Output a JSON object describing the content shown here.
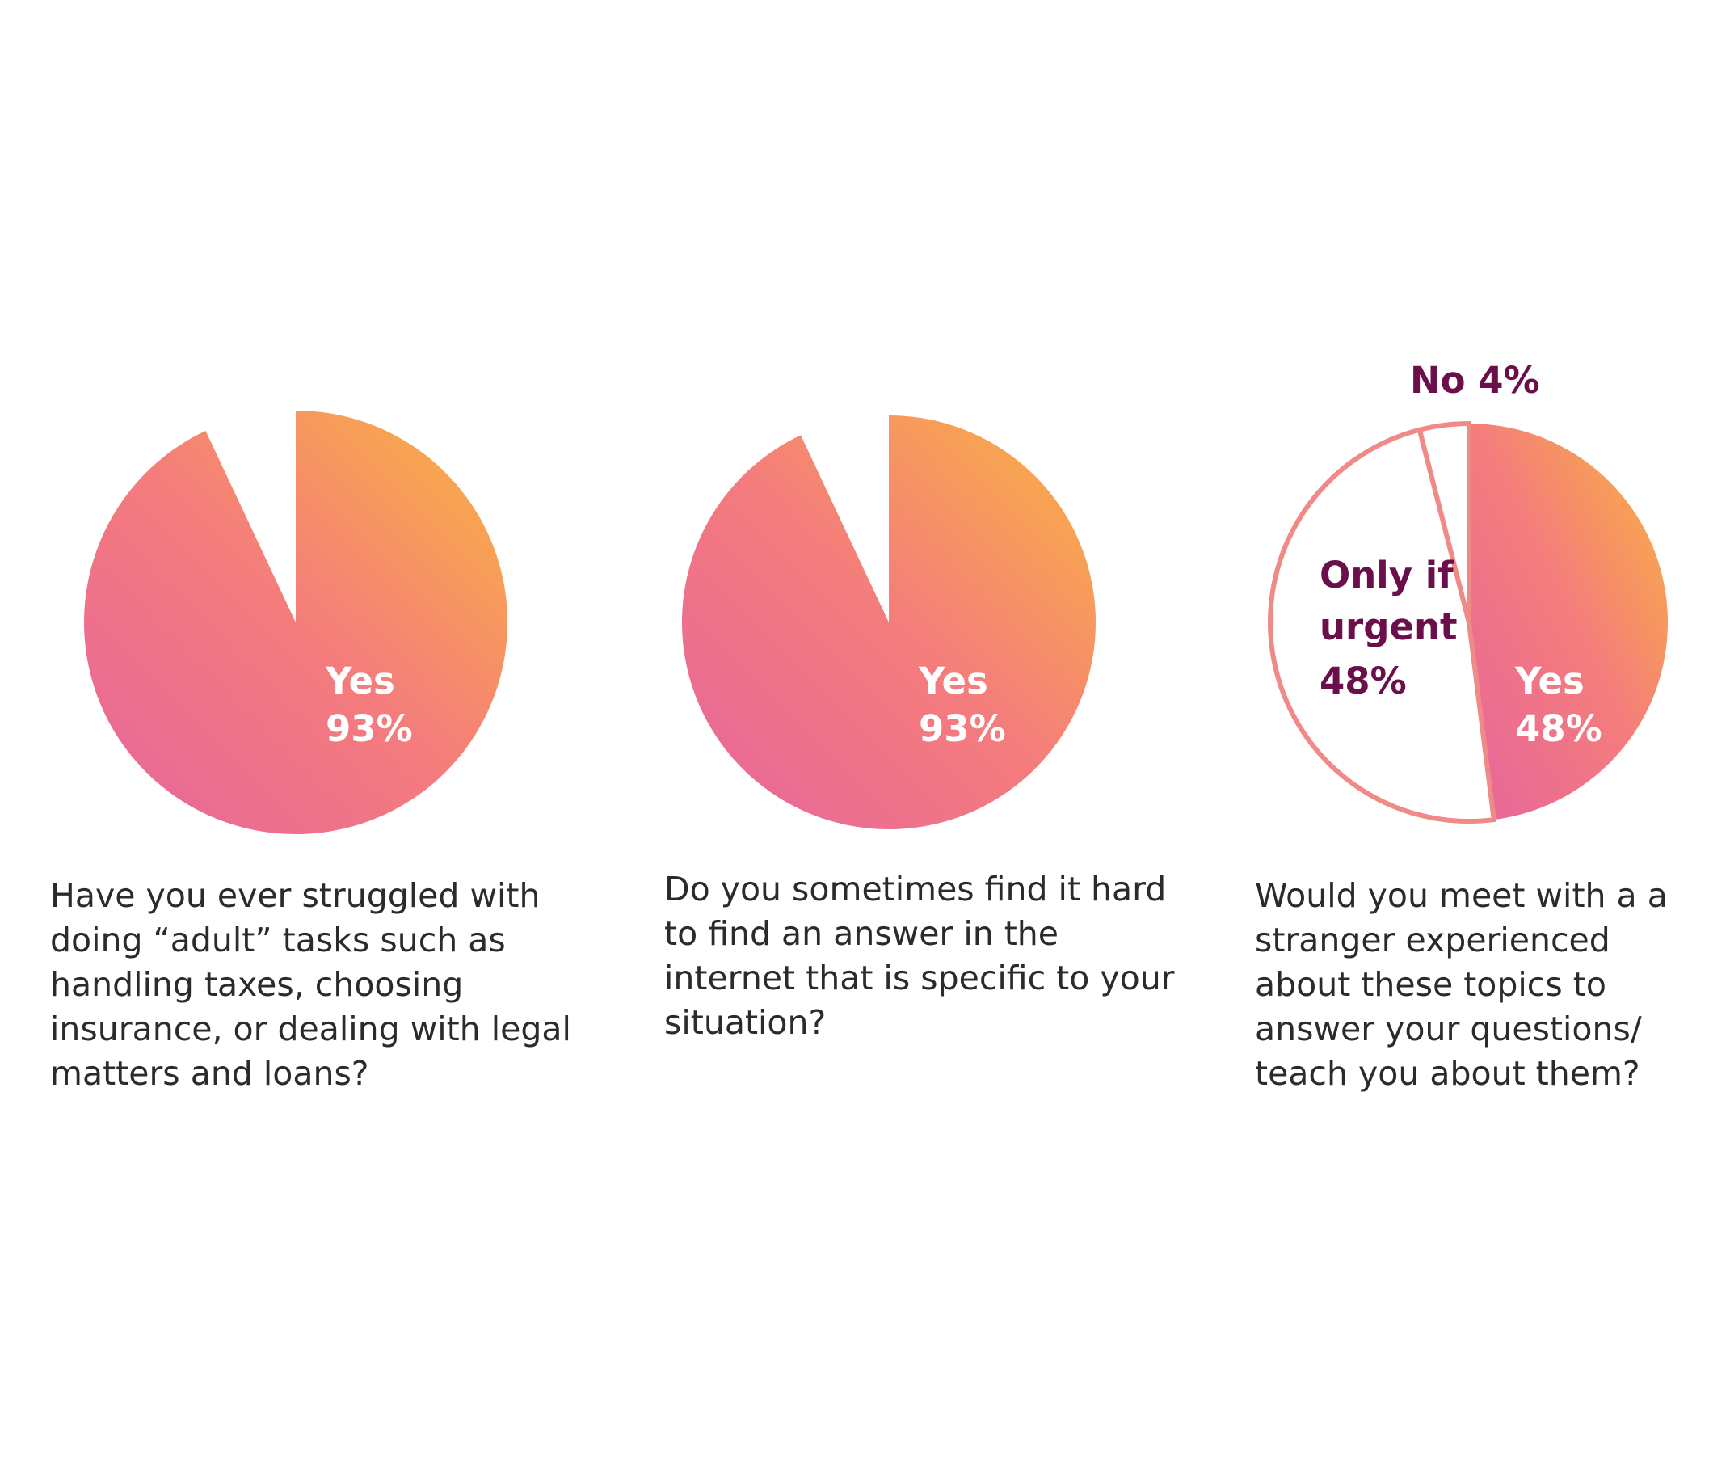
{
  "colors": {
    "gradient_start": "#E8679A",
    "gradient_mid": "#F47C7C",
    "gradient_end": "#F9AF45",
    "label_on_fill": "#FFFFFF",
    "label_dark": "#6B0F4A",
    "outline": "#F08A86"
  },
  "chart_data": [
    {
      "type": "pie",
      "slices": [
        {
          "label": "Yes",
          "value": 93,
          "display": "93%",
          "style": "filled"
        },
        {
          "label": "",
          "value": 7,
          "style": "empty"
        }
      ],
      "caption": "Have you ever struggled with doing “adult” tasks such as handling taxes, choosing insurance, or dealing with legal matters and loans?"
    },
    {
      "type": "pie",
      "slices": [
        {
          "label": "Yes",
          "value": 93,
          "display": "93%",
          "style": "filled"
        },
        {
          "label": "",
          "value": 7,
          "style": "empty"
        }
      ],
      "caption": "Do you sometimes find it hard to find an answer in the internet that is specific to your situation?"
    },
    {
      "type": "pie",
      "slices": [
        {
          "label": "Yes",
          "value": 48,
          "display": "48%",
          "style": "filled"
        },
        {
          "label": "Only if urgent",
          "label_lines": [
            "Only if",
            "urgent"
          ],
          "value": 48,
          "display": "48%",
          "style": "outline"
        },
        {
          "label": "No",
          "value": 4,
          "display": "4%",
          "style": "outline",
          "label_text": "No 4%"
        }
      ],
      "caption": "Would you meet with a a stranger experienced about these topics to answer your questions/ teach you about them?"
    }
  ]
}
